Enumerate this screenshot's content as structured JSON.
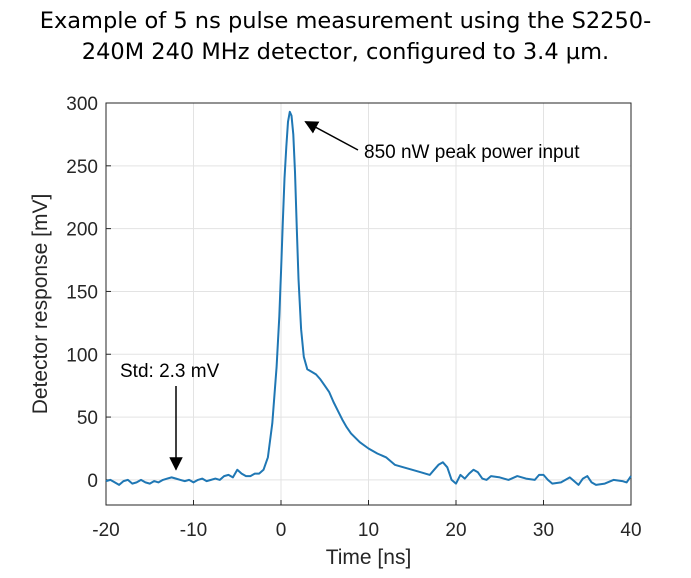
{
  "title": {
    "line1": "Example of 5 ns pulse measurement using the S2250-",
    "line2": "240M 240 MHz detector, configured to 3.4 µm."
  },
  "chart_data": {
    "type": "line",
    "xlabel": "Time [ns]",
    "ylabel": "Detector response [mV]",
    "xlim": [
      -20,
      40
    ],
    "ylim": [
      -20,
      300
    ],
    "xticks": [
      -20,
      -10,
      0,
      10,
      20,
      30,
      40
    ],
    "yticks": [
      0,
      50,
      100,
      150,
      200,
      250,
      300
    ],
    "grid": true,
    "line_color": "#1f77b4",
    "series": [
      {
        "x": [
          -20,
          -19.5,
          -19,
          -18.5,
          -18,
          -17.5,
          -17,
          -16.5,
          -16,
          -15.5,
          -15,
          -14.5,
          -14,
          -13.5,
          -13,
          -12.5,
          -12,
          -11.5,
          -11,
          -10.5,
          -10,
          -9.5,
          -9,
          -8.5,
          -8,
          -7.5,
          -7,
          -6.5,
          -6,
          -5.5,
          -5,
          -4.5,
          -4,
          -3.5,
          -3,
          -2.5,
          -2,
          -1.5,
          -1,
          -0.5,
          -0.2,
          0,
          0.2,
          0.4,
          0.6,
          0.8,
          1.0,
          1.2,
          1.4,
          1.6,
          1.8,
          2.0,
          2.3,
          2.6,
          3.0,
          3.5,
          4,
          4.5,
          5,
          5.5,
          6,
          6.5,
          7,
          7.5,
          8,
          9,
          10,
          11,
          12,
          13,
          14,
          15,
          16,
          17,
          17.5,
          18,
          18.5,
          19,
          19.5,
          20,
          20.5,
          21,
          21.5,
          22,
          22.5,
          23,
          23.5,
          24,
          25,
          26,
          27,
          28,
          29,
          29.5,
          30,
          30.5,
          31,
          32,
          33,
          34,
          34.5,
          35,
          35.5,
          36,
          37,
          38,
          39,
          39.5,
          40
        ],
        "y": [
          -1,
          0,
          -2,
          -4,
          -1,
          0,
          -3,
          -2,
          0,
          -2,
          -3,
          -1,
          -2,
          0,
          1,
          2,
          1,
          0,
          -1,
          0,
          -2,
          0,
          1,
          -1,
          0,
          1,
          0,
          3,
          4,
          2,
          8,
          5,
          3,
          3,
          5,
          5,
          8,
          18,
          45,
          90,
          130,
          165,
          205,
          240,
          265,
          285,
          293,
          290,
          275,
          245,
          200,
          160,
          120,
          98,
          88,
          86,
          84,
          80,
          75,
          70,
          62,
          55,
          48,
          42,
          37,
          30,
          25,
          21,
          18,
          12,
          10,
          8,
          6,
          4,
          8,
          12,
          14,
          10,
          0,
          -3,
          4,
          1,
          5,
          8,
          6,
          1,
          0,
          3,
          2,
          0,
          3,
          1,
          0,
          4,
          4,
          0,
          -3,
          -2,
          2,
          -4,
          1,
          3,
          -2,
          -4,
          -3,
          0,
          -1,
          -2,
          3
        ],
        "color": "#1f77b4"
      }
    ],
    "annotations": [
      {
        "text": "850 nW peak power input",
        "target": [
          1.2,
          293
        ]
      },
      {
        "text": "Std: 2.3 mV",
        "target": [
          -12,
          2
        ]
      }
    ]
  }
}
